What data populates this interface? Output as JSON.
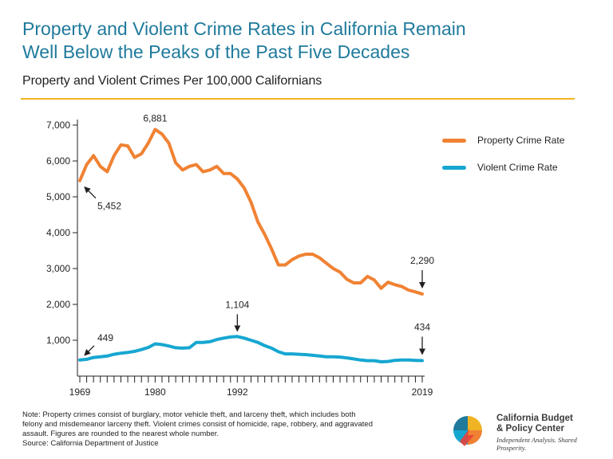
{
  "header": {
    "title_line1": "Property and Violent Crime Rates in California Remain",
    "title_line2": "Well Below the Peaks of the Past Five Decades",
    "subtitle": "Property and Violent Crimes Per 100,000 Californians"
  },
  "legend": {
    "property_label": "Property Crime Rate",
    "violent_label": "Violent Crime Rate"
  },
  "colors": {
    "property": "#f08233",
    "violent": "#16a7d1",
    "title": "#1f7a9c",
    "rule": "#f0b323"
  },
  "chart_data": {
    "type": "line",
    "x": [
      1969,
      1970,
      1971,
      1972,
      1973,
      1974,
      1975,
      1976,
      1977,
      1978,
      1979,
      1980,
      1981,
      1982,
      1983,
      1984,
      1985,
      1986,
      1987,
      1988,
      1989,
      1990,
      1991,
      1992,
      1993,
      1994,
      1995,
      1996,
      1997,
      1998,
      1999,
      2000,
      2001,
      2002,
      2003,
      2004,
      2005,
      2006,
      2007,
      2008,
      2009,
      2010,
      2011,
      2012,
      2013,
      2014,
      2015,
      2016,
      2017,
      2018,
      2019
    ],
    "series": [
      {
        "name": "Property Crime Rate",
        "values": [
          5452,
          5900,
          6150,
          5850,
          5700,
          6150,
          6450,
          6420,
          6100,
          6200,
          6500,
          6881,
          6750,
          6500,
          5950,
          5750,
          5850,
          5900,
          5700,
          5750,
          5850,
          5650,
          5650,
          5500,
          5250,
          4850,
          4300,
          3950,
          3550,
          3100,
          3100,
          3250,
          3350,
          3400,
          3400,
          3300,
          3150,
          3000,
          2900,
          2700,
          2600,
          2600,
          2780,
          2680,
          2450,
          2620,
          2550,
          2500,
          2400,
          2350,
          2290
        ]
      },
      {
        "name": "Violent Crime Rate",
        "values": [
          449,
          470,
          520,
          540,
          560,
          610,
          640,
          660,
          690,
          740,
          800,
          900,
          880,
          840,
          790,
          780,
          790,
          940,
          940,
          960,
          1020,
          1060,
          1090,
          1104,
          1060,
          1000,
          940,
          850,
          780,
          680,
          620,
          620,
          610,
          600,
          580,
          560,
          540,
          540,
          530,
          510,
          480,
          450,
          430,
          430,
          400,
          410,
          440,
          450,
          450,
          440,
          434
        ]
      }
    ],
    "ylim": [
      0,
      7000
    ],
    "yticks": [
      1000,
      2000,
      3000,
      4000,
      5000,
      6000,
      7000
    ],
    "ytick_labels": [
      "1,000",
      "2,000",
      "3,000",
      "4,000",
      "5,000",
      "6,000",
      "7,000"
    ],
    "xtick_labels": [
      {
        "year": 1969,
        "label": "1969"
      },
      {
        "year": 1980,
        "label": "1980"
      },
      {
        "year": 1992,
        "label": "1992"
      },
      {
        "year": 2019,
        "label": "2019"
      }
    ],
    "annotations": [
      {
        "label": "5,452",
        "year": 1969,
        "value": 5452,
        "series": "property"
      },
      {
        "label": "6,881",
        "year": 1980,
        "value": 6881,
        "series": "property"
      },
      {
        "label": "2,290",
        "year": 2019,
        "value": 2290,
        "series": "property"
      },
      {
        "label": "449",
        "year": 1969,
        "value": 449,
        "series": "violent"
      },
      {
        "label": "1,104",
        "year": 1992,
        "value": 1104,
        "series": "violent"
      },
      {
        "label": "434",
        "year": 2019,
        "value": 434,
        "series": "violent"
      }
    ],
    "grid": false,
    "legend_position": "right"
  },
  "footer": {
    "note_line1": "Note: Property crimes consist of burglary, motor vehicle theft, and larceny theft, which includes both",
    "note_line2": "felony and misdemeanor larceny theft. Violent crimes consist of homicide, rape, robbery, and aggravated",
    "note_line3": "assault. Figures are rounded to the nearest whole number.",
    "source": "Source: California Department of Justice"
  },
  "logo": {
    "name_line1": "California Budget",
    "name_line2": "& Policy Center",
    "tagline": "Independent Analysis. Shared Prosperity."
  }
}
